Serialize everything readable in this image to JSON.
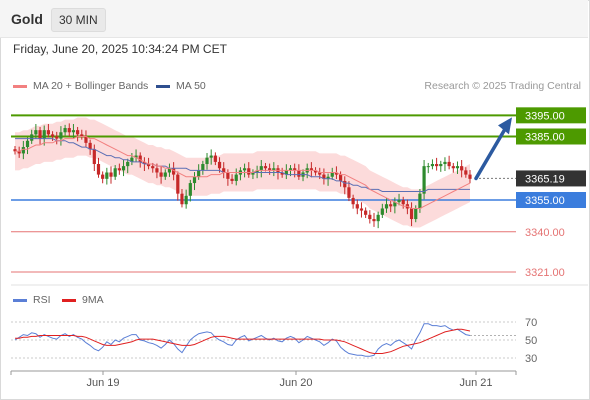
{
  "header": {
    "title": "Gold",
    "timeframe": "30 MIN"
  },
  "datetime": "Friday, June 20, 2025 10:34:24 PM CET",
  "legend": {
    "ma20_label": "MA 20 + Bollinger Bands",
    "ma50_label": "MA 50",
    "research": "Research © 2025 Trading Central"
  },
  "rsi_legend": {
    "rsi_label": "RSI",
    "ma_label": "9MA"
  },
  "colors": {
    "up": "#2e8b2e",
    "down": "#c62828",
    "ma20": "#f28080",
    "ma50": "#5b6fb5",
    "band": "#fbd5d5",
    "resistance": "#4d9a00",
    "pivot": "#3b7ddd",
    "support": "#e57373",
    "current": "#333333",
    "arrow": "#2c5aa0",
    "rsi": "#5b7fd6",
    "rsi_ma": "#e02020"
  },
  "chart_data": {
    "type": "candlestick",
    "x_ticks": [
      "Jun 19",
      "Jun 20",
      "Jun 21"
    ],
    "price_levels": [
      {
        "value": 3395.0,
        "label": "3395.00",
        "kind": "resistance"
      },
      {
        "value": 3385.0,
        "label": "3385.00",
        "kind": "resistance"
      },
      {
        "value": 3365.19,
        "label": "3365.19",
        "kind": "current"
      },
      {
        "value": 3355.0,
        "label": "3355.00",
        "kind": "pivot"
      },
      {
        "value": 3340.0,
        "label": "3340.00",
        "kind": "support"
      },
      {
        "value": 3321.0,
        "label": "3321.00",
        "kind": "support"
      }
    ],
    "target_arrow": {
      "from": 3365.19,
      "to": 3395.0
    },
    "close": [
      3378,
      3377,
      3380,
      3383,
      3386,
      3388,
      3384,
      3388,
      3386,
      3385,
      3384,
      3387,
      3389,
      3387,
      3388,
      3386,
      3385,
      3382,
      3379,
      3372,
      3367,
      3365,
      3368,
      3366,
      3370,
      3369,
      3371,
      3373,
      3375,
      3376,
      3373,
      3372,
      3371,
      3370,
      3368,
      3366,
      3368,
      3370,
      3367,
      3358,
      3353,
      3357,
      3363,
      3366,
      3369,
      3372,
      3375,
      3376,
      3373,
      3370,
      3368,
      3365,
      3364,
      3367,
      3369,
      3370,
      3367,
      3368,
      3369,
      3371,
      3370,
      3369,
      3370,
      3368,
      3367,
      3369,
      3370,
      3369,
      3366,
      3368,
      3370,
      3369,
      3368,
      3367,
      3365,
      3366,
      3368,
      3367,
      3364,
      3361,
      3356,
      3353,
      3351,
      3350,
      3348,
      3346,
      3345,
      3348,
      3351,
      3353,
      3352,
      3354,
      3355,
      3353,
      3351,
      3346,
      3351,
      3358,
      3371,
      3371,
      3372,
      3371,
      3372,
      3373,
      3371,
      3370,
      3371,
      3369,
      3367,
      3365
    ],
    "ma20": [
      3378,
      3378,
      3379,
      3379,
      3380,
      3381,
      3381,
      3382,
      3382,
      3382,
      3383,
      3383,
      3384,
      3384,
      3384,
      3385,
      3385,
      3385,
      3384,
      3384,
      3383,
      3382,
      3381,
      3380,
      3379,
      3378,
      3377,
      3376,
      3376,
      3375,
      3374,
      3373,
      3372,
      3372,
      3371,
      3371,
      3370,
      3370,
      3369,
      3368,
      3367,
      3366,
      3366,
      3366,
      3366,
      3366,
      3366,
      3367,
      3367,
      3367,
      3368,
      3368,
      3368,
      3368,
      3368,
      3368,
      3368,
      3368,
      3369,
      3369,
      3369,
      3369,
      3369,
      3369,
      3369,
      3369,
      3369,
      3369,
      3369,
      3369,
      3369,
      3369,
      3369,
      3368,
      3368,
      3368,
      3368,
      3368,
      3367,
      3367,
      3366,
      3365,
      3364,
      3363,
      3362,
      3360,
      3359,
      3358,
      3357,
      3356,
      3355,
      3354,
      3353,
      3352,
      3352,
      3351,
      3351,
      3351,
      3352,
      3353,
      3354,
      3355,
      3356,
      3357,
      3358,
      3359,
      3360,
      3361,
      3362,
      3363
    ],
    "ma50": [
      3384,
      3384,
      3384,
      3384,
      3384,
      3384,
      3384,
      3384,
      3384,
      3384,
      3383,
      3383,
      3383,
      3382,
      3382,
      3381,
      3380,
      3380,
      3379,
      3379,
      3378,
      3377,
      3376,
      3376,
      3375,
      3375,
      3374,
      3374,
      3373,
      3373,
      3373,
      3372,
      3372,
      3372,
      3371,
      3371,
      3371,
      3370,
      3370,
      3370,
      3370,
      3370,
      3369,
      3369,
      3369,
      3369,
      3369,
      3369,
      3369,
      3369,
      3368,
      3368,
      3368,
      3368,
      3368,
      3368,
      3368,
      3368,
      3368,
      3368,
      3368,
      3368,
      3368,
      3368,
      3368,
      3367,
      3367,
      3367,
      3367,
      3367,
      3367,
      3366,
      3366,
      3366,
      3365,
      3365,
      3365,
      3364,
      3364,
      3363,
      3363,
      3362,
      3362,
      3361,
      3361,
      3360,
      3360,
      3360,
      3359,
      3359,
      3359,
      3359,
      3359,
      3359,
      3359,
      3359,
      3359,
      3359,
      3359,
      3360,
      3360,
      3360,
      3360,
      3360,
      3360,
      3360,
      3360,
      3360,
      3360,
      3360
    ],
    "rsi": [
      50,
      53,
      56,
      55,
      58,
      57,
      53,
      56,
      54,
      52,
      51,
      55,
      57,
      54,
      56,
      53,
      51,
      47,
      44,
      40,
      38,
      42,
      48,
      45,
      50,
      48,
      52,
      54,
      56,
      56,
      50,
      49,
      47,
      46,
      44,
      41,
      45,
      50,
      46,
      40,
      36,
      43,
      50,
      54,
      57,
      58,
      59,
      58,
      53,
      50,
      48,
      45,
      44,
      50,
      53,
      55,
      49,
      51,
      53,
      55,
      52,
      50,
      52,
      49,
      48,
      52,
      54,
      52,
      47,
      50,
      54,
      52,
      50,
      48,
      44,
      47,
      51,
      49,
      42,
      38,
      35,
      34,
      33,
      33,
      32,
      32,
      33,
      40,
      44,
      46,
      44,
      48,
      50,
      47,
      44,
      40,
      50,
      58,
      68,
      68,
      66,
      66,
      65,
      66,
      63,
      61,
      62,
      59,
      56,
      55
    ],
    "rsi_ma": [
      52,
      52,
      53,
      53,
      54,
      54,
      55,
      55,
      55,
      55,
      55,
      55,
      55,
      55,
      55,
      54,
      54,
      53,
      51,
      49,
      47,
      45,
      44,
      44,
      44,
      45,
      46,
      47,
      48,
      50,
      51,
      51,
      51,
      51,
      50,
      49,
      48,
      47,
      46,
      45,
      44,
      44,
      44,
      45,
      47,
      49,
      51,
      53,
      54,
      54,
      54,
      53,
      52,
      51,
      51,
      51,
      51,
      51,
      51,
      51,
      51,
      51,
      51,
      51,
      51,
      51,
      51,
      51,
      51,
      51,
      51,
      51,
      51,
      51,
      50,
      50,
      50,
      50,
      49,
      48,
      46,
      44,
      42,
      40,
      38,
      36,
      35,
      35,
      35,
      36,
      37,
      39,
      41,
      43,
      44,
      45,
      46,
      47,
      49,
      51,
      53,
      55,
      57,
      59,
      60,
      61,
      62,
      62,
      61,
      60
    ],
    "rsi_levels": [
      70,
      50,
      30
    ]
  }
}
